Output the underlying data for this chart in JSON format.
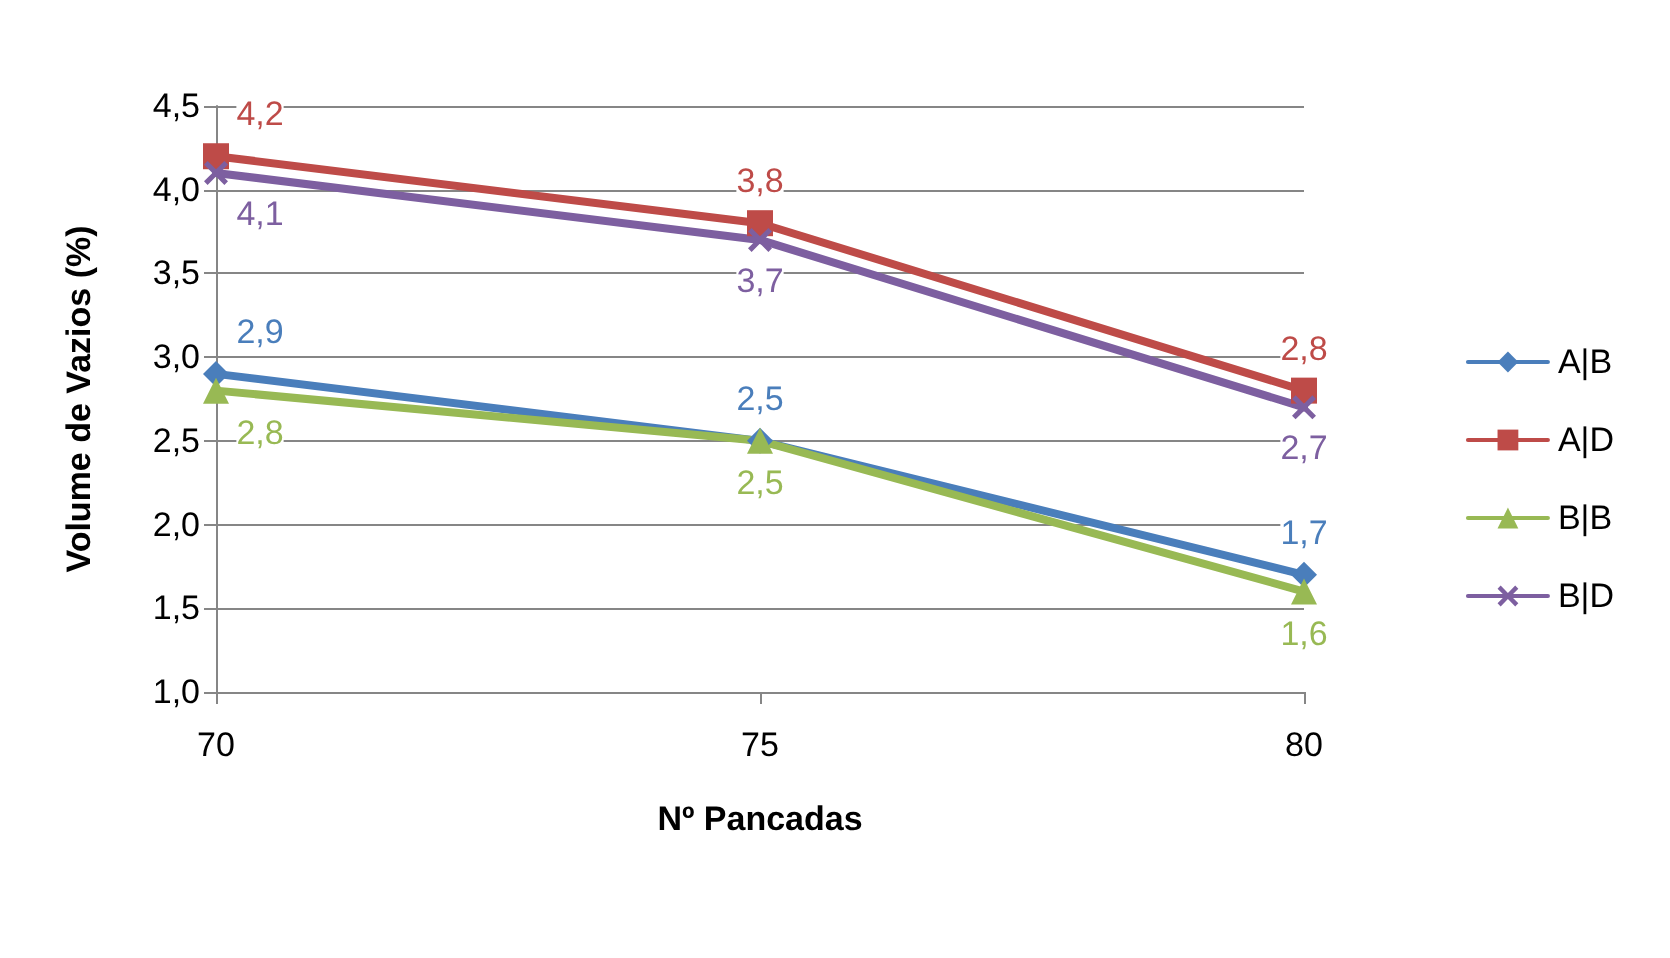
{
  "chart_data": {
    "type": "line",
    "xlabel": "Nº Pancadas",
    "ylabel": "Volume de Vazios (%)",
    "x": [
      70,
      75,
      80
    ],
    "xlim": [
      70,
      80
    ],
    "xticks": [
      70,
      75,
      80
    ],
    "ylim": [
      1,
      4.5
    ],
    "yticks": [
      {
        "value": 1,
        "label": "1,0"
      },
      {
        "value": 1.5,
        "label": "1,5"
      },
      {
        "value": 2,
        "label": "2,0"
      },
      {
        "value": 2.5,
        "label": "2,5"
      },
      {
        "value": 3,
        "label": "3,0"
      },
      {
        "value": 3.5,
        "label": "3,5"
      },
      {
        "value": 4,
        "label": "4,0"
      },
      {
        "value": 4.5,
        "label": "4,5"
      }
    ],
    "grid": "y",
    "legend": "right",
    "line_style": "solid",
    "series": [
      {
        "name": "A|B",
        "color": "#4a7ebb",
        "marker": "diamond",
        "values": [
          2.9,
          2.5,
          1.7
        ],
        "value_labels": [
          "2,9",
          "2,5",
          "1,7"
        ]
      },
      {
        "name": "A|D",
        "color": "#be4b48",
        "marker": "square",
        "values": [
          4.2,
          3.8,
          2.8
        ],
        "value_labels": [
          "4,2",
          "3,8",
          "2,8"
        ]
      },
      {
        "name": "B|B",
        "color": "#98b954",
        "marker": "triangle",
        "values": [
          2.8,
          2.5,
          1.6
        ],
        "value_labels": [
          "2,8",
          "2,5",
          "1,6"
        ]
      },
      {
        "name": "B|D",
        "color": "#7d5fa0",
        "marker": "cross",
        "values": [
          4.1,
          3.7,
          2.7
        ],
        "value_labels": [
          "4,1",
          "3,7",
          "2,7"
        ]
      }
    ]
  }
}
